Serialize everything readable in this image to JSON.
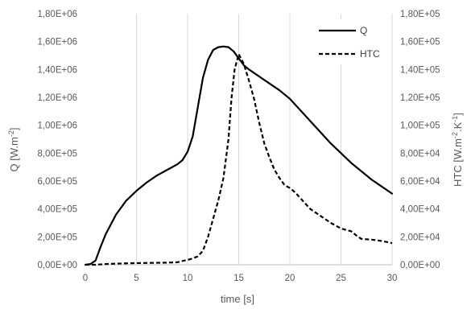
{
  "chart_data": {
    "type": "line",
    "title": "",
    "xlabel": "time [s]",
    "ylabel_left": "Q [W.m",
    "ylabel_left_sup": "-2",
    "ylabel_left_end": "]",
    "ylabel_right": "HTC [W.m",
    "ylabel_right_sup1": "-2",
    "ylabel_right_mid": ".K",
    "ylabel_right_sup2": "-1",
    "ylabel_right_end": "]",
    "xlim": [
      0,
      30
    ],
    "ylim_left": [
      0,
      1800000
    ],
    "ylim_right": [
      0,
      180000
    ],
    "x_ticks": [
      "0",
      "5",
      "10",
      "15",
      "20",
      "25",
      "30"
    ],
    "y_ticks_left": [
      "0,00E+00",
      "2,00E+05",
      "4,00E+05",
      "6,00E+05",
      "8,00E+05",
      "1,00E+06",
      "1,20E+06",
      "1,40E+06",
      "1,60E+06",
      "1,80E+06"
    ],
    "y_ticks_right": [
      "0,00E+00",
      "2,00E+04",
      "4,00E+04",
      "6,00E+04",
      "8,00E+04",
      "1,00E+05",
      "1,20E+05",
      "1,40E+05",
      "1,60E+05",
      "1,80E+05"
    ],
    "grid": "vertical",
    "legend_position": "top-right",
    "series": [
      {
        "name": "Q",
        "axis": "left",
        "style": "solid",
        "color": "#000000",
        "x": [
          0,
          0.5,
          1,
          1.5,
          2,
          3,
          4,
          5,
          6,
          7,
          8,
          9,
          9.5,
          10,
          10.5,
          11,
          11.5,
          12,
          12.5,
          13,
          13.5,
          14,
          14.5,
          15,
          15.5,
          16,
          17,
          18,
          19,
          20,
          21,
          22,
          23,
          24,
          25,
          26,
          27,
          28,
          29,
          30
        ],
        "y": [
          0,
          5000,
          30000,
          130000,
          220000,
          360000,
          460000,
          530000,
          590000,
          640000,
          680000,
          720000,
          750000,
          810000,
          920000,
          1130000,
          1340000,
          1470000,
          1540000,
          1560000,
          1565000,
          1560000,
          1530000,
          1480000,
          1430000,
          1400000,
          1350000,
          1300000,
          1250000,
          1190000,
          1110000,
          1030000,
          950000,
          870000,
          800000,
          730000,
          670000,
          610000,
          560000,
          510000
        ]
      },
      {
        "name": "HTC",
        "axis": "right",
        "style": "dashed",
        "color": "#000000",
        "x": [
          0,
          1,
          2,
          3,
          4,
          5,
          6,
          7,
          8,
          9,
          10,
          10.5,
          11,
          11.5,
          12,
          12.5,
          13,
          13.5,
          14,
          14.3,
          14.6,
          15,
          15.5,
          16,
          16.5,
          17,
          17.5,
          18,
          18.5,
          19,
          19.5,
          20,
          20.5,
          21,
          21.5,
          22,
          23,
          24,
          25,
          26,
          26.5,
          27,
          28,
          29,
          30
        ],
        "y": [
          0,
          0,
          500,
          800,
          1000,
          1200,
          1300,
          1400,
          1500,
          1800,
          3500,
          4500,
          6000,
          10000,
          20000,
          33000,
          46000,
          62000,
          90000,
          120000,
          140000,
          151000,
          144000,
          132000,
          119000,
          102000,
          87000,
          77000,
          68000,
          62000,
          57000,
          55000,
          52000,
          48000,
          44000,
          40000,
          35000,
          30000,
          26000,
          24000,
          21000,
          18500,
          18000,
          17000,
          15500
        ]
      }
    ]
  }
}
